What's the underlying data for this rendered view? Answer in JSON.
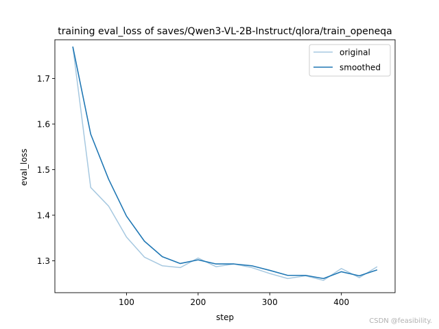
{
  "chart_data": {
    "type": "line",
    "title": "training eval_loss of saves/Qwen3-VL-2B-Instruct/qlora/train_openeqa",
    "xlabel": "step",
    "ylabel": "eval_loss",
    "xlim": [
      0,
      475
    ],
    "ylim": [
      1.23,
      1.785
    ],
    "xticks": [
      100,
      200,
      300,
      400
    ],
    "yticks": [
      1.3,
      1.4,
      1.5,
      1.6,
      1.7
    ],
    "xtick_labels": [
      "100",
      "200",
      "300",
      "400"
    ],
    "ytick_labels": [
      "1.3",
      "1.4",
      "1.5",
      "1.6",
      "1.7"
    ],
    "grid": false,
    "legend_position": "top-right",
    "x": [
      25,
      50,
      75,
      100,
      125,
      150,
      175,
      200,
      225,
      250,
      275,
      300,
      325,
      350,
      375,
      400,
      425,
      450
    ],
    "series": [
      {
        "name": "original",
        "color": "#a6c8e0",
        "values": [
          1.77,
          1.461,
          1.42,
          1.352,
          1.308,
          1.289,
          1.285,
          1.306,
          1.287,
          1.293,
          1.285,
          1.272,
          1.261,
          1.267,
          1.257,
          1.283,
          1.263,
          1.287
        ]
      },
      {
        "name": "smoothed",
        "color": "#1f77b4",
        "values": [
          1.77,
          1.578,
          1.479,
          1.398,
          1.343,
          1.309,
          1.294,
          1.302,
          1.293,
          1.293,
          1.289,
          1.279,
          1.268,
          1.268,
          1.261,
          1.276,
          1.267,
          1.28
        ]
      }
    ]
  },
  "watermark": "CSDN @feasibility."
}
